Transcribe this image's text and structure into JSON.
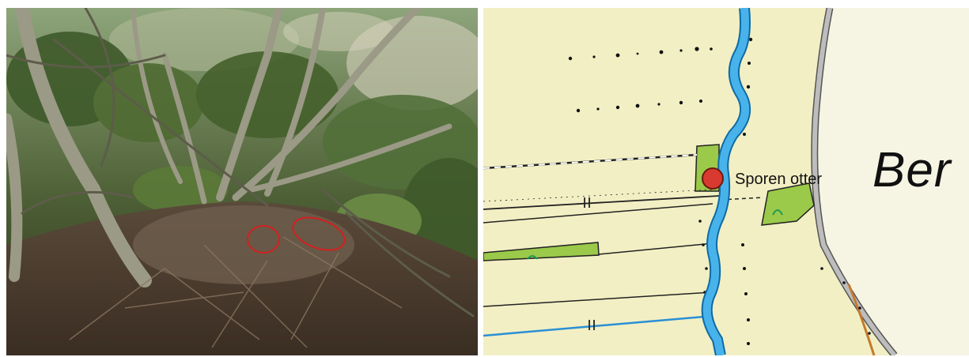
{
  "photo": {
    "subject": "undergrowth with otter traces",
    "annotations": [
      {
        "shape": "ellipse",
        "color": "#d42020"
      },
      {
        "shape": "ellipse",
        "color": "#d42020"
      }
    ]
  },
  "map": {
    "marker": {
      "label": "Sporen otter",
      "fill": "#d93a2f",
      "stroke": "#6b1a12"
    },
    "place_label": "Ber",
    "colors": {
      "land": "#f2efc4",
      "built_area": "#f6f5e4",
      "water": "#48b3ea",
      "water_edge": "#0f6aa5",
      "green_patch": "#9bc94a",
      "road": "#9a9a9a",
      "path": "#c47a2c"
    },
    "icons": [
      "location-marker-icon"
    ]
  }
}
